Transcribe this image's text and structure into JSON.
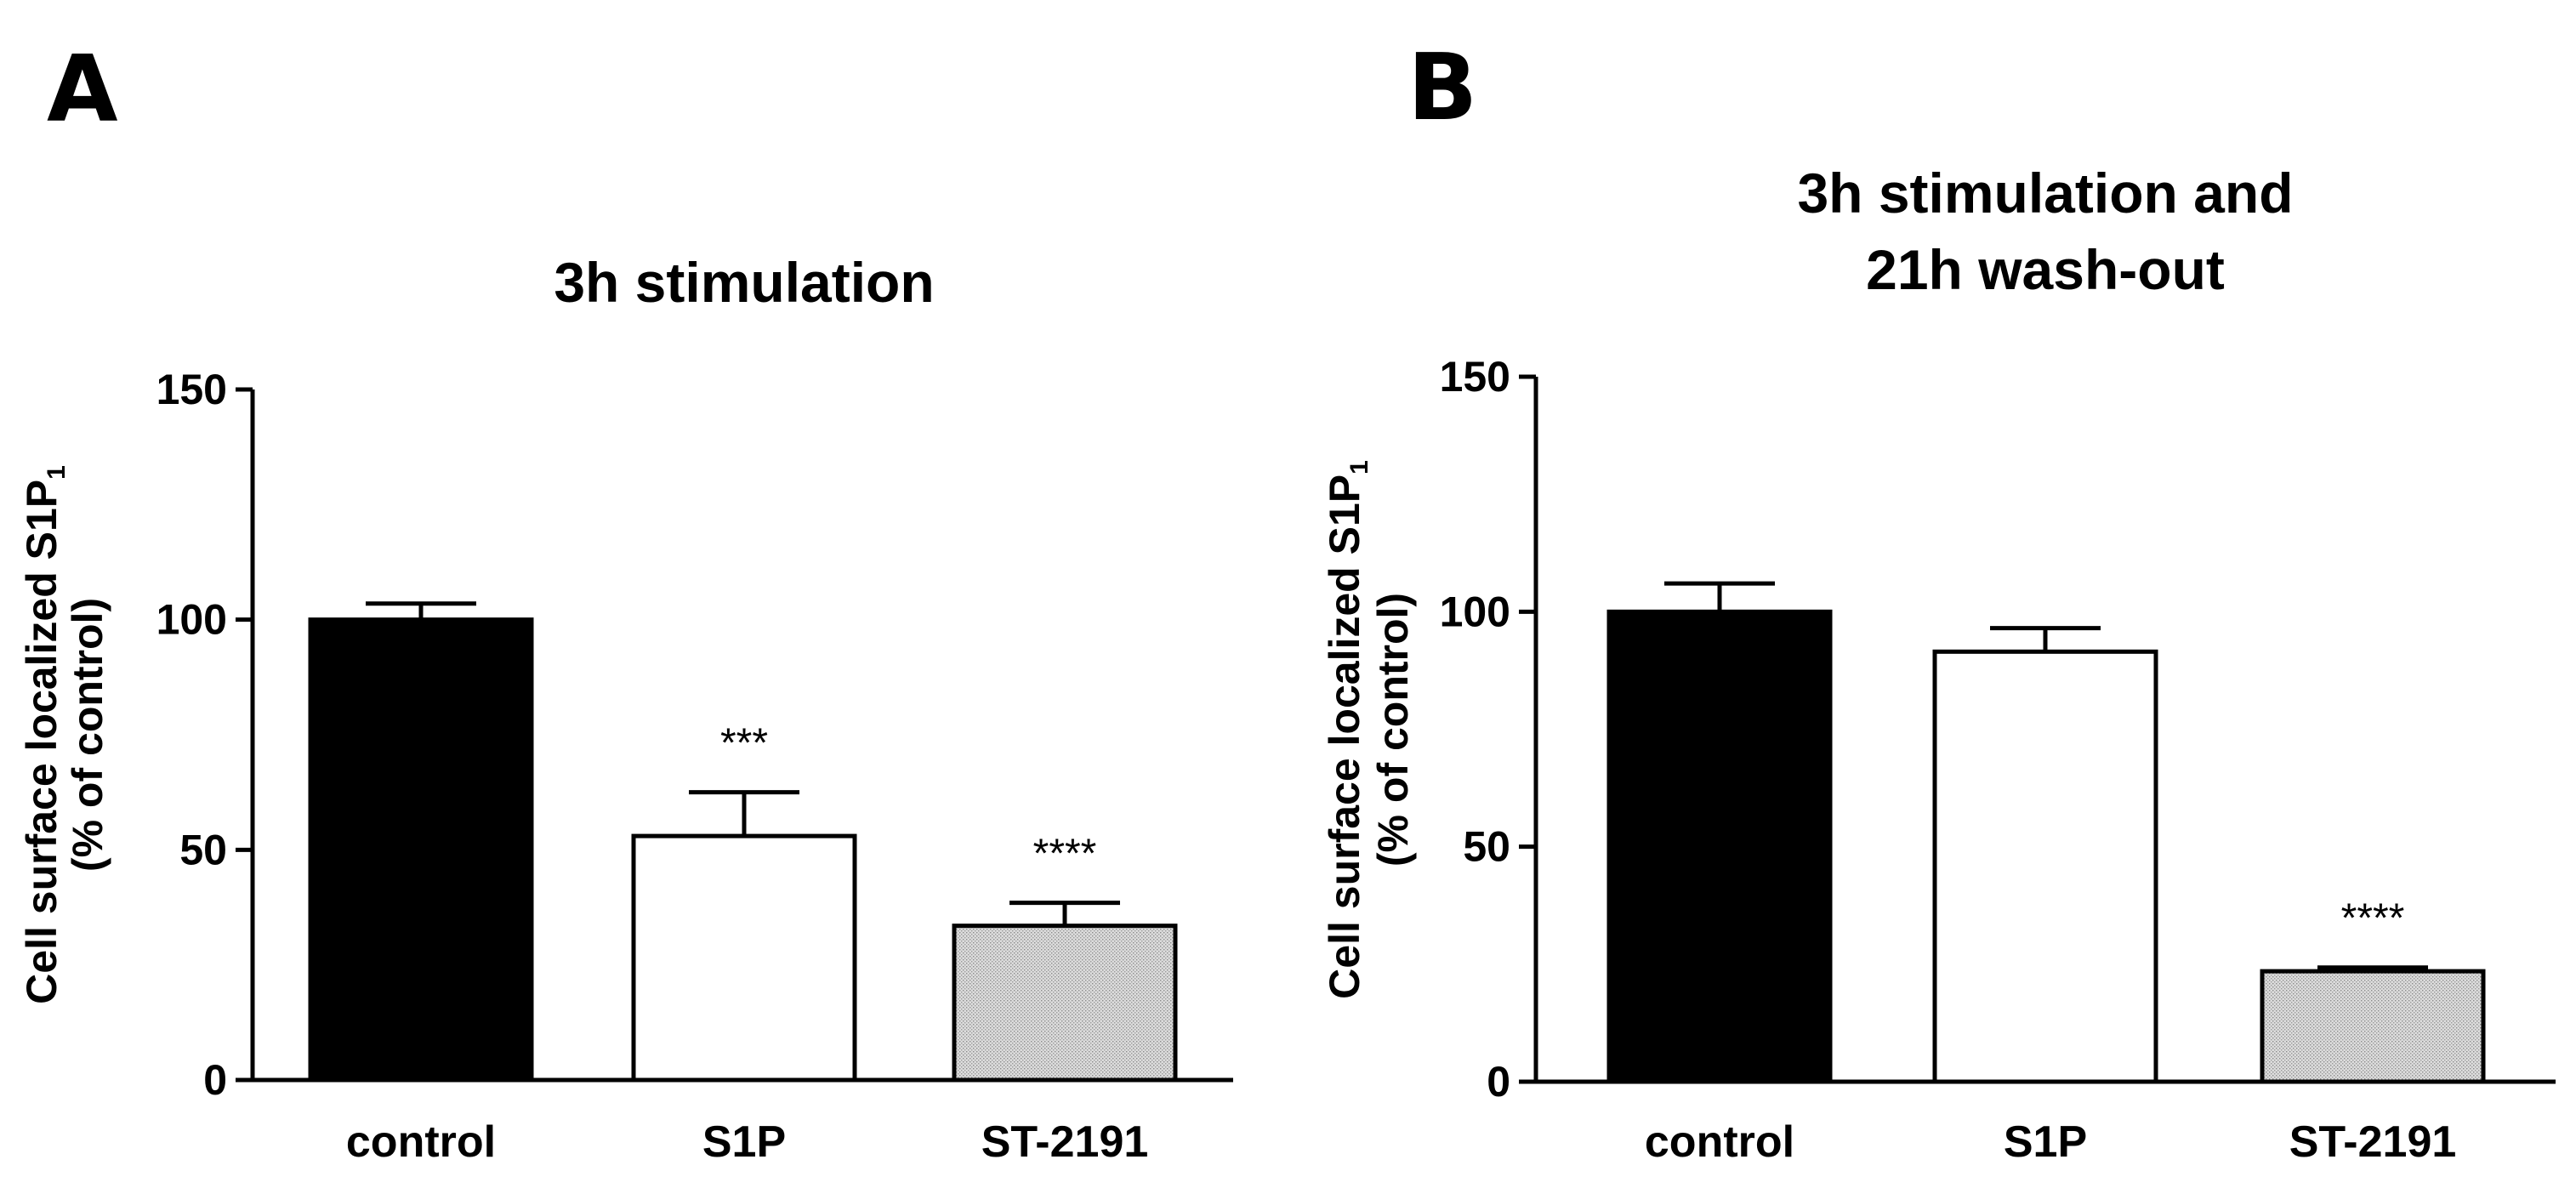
{
  "panels": [
    {
      "letter": "A"
    },
    {
      "letter": "B"
    }
  ],
  "colors": {
    "control_fill": "#000000",
    "s1p_fill": "#ffffff",
    "st2191_fill": "#d4d4d4",
    "axis": "#000000"
  },
  "chart_data": [
    {
      "type": "bar",
      "title": "3h stimulation",
      "title_lines": [
        "3h stimulation"
      ],
      "categories": [
        "control",
        "S1P",
        "ST-2191"
      ],
      "values": [
        100,
        53,
        33.5
      ],
      "errors": [
        3.5,
        9.5,
        5
      ],
      "significance": [
        "",
        "***",
        "****"
      ],
      "fills": [
        "#000000",
        "#ffffff",
        "#d4d4d4"
      ],
      "ylabel_main": "Cell surface localized S1P",
      "ylabel_subscript": "1",
      "ylabel_line2": "(% of control)",
      "ylim": [
        0,
        150
      ],
      "yticks": [
        0,
        50,
        100,
        150
      ],
      "grid": false,
      "legend": "none"
    },
    {
      "type": "bar",
      "title": "3h stimulation and 21h wash-out",
      "title_lines": [
        "3h stimulation and",
        "21h wash-out"
      ],
      "categories": [
        "control",
        "S1P",
        "ST-2191"
      ],
      "values": [
        100,
        91.5,
        23.5
      ],
      "errors": [
        6,
        5,
        0.8
      ],
      "significance": [
        "",
        "",
        "****"
      ],
      "fills": [
        "#000000",
        "#ffffff",
        "#d4d4d4"
      ],
      "ylabel_main": "Cell surface localized S1P",
      "ylabel_subscript": "1",
      "ylabel_line2": "(% of control)",
      "ylim": [
        0,
        150
      ],
      "yticks": [
        0,
        50,
        100,
        150
      ],
      "grid": false,
      "legend": "none"
    }
  ]
}
